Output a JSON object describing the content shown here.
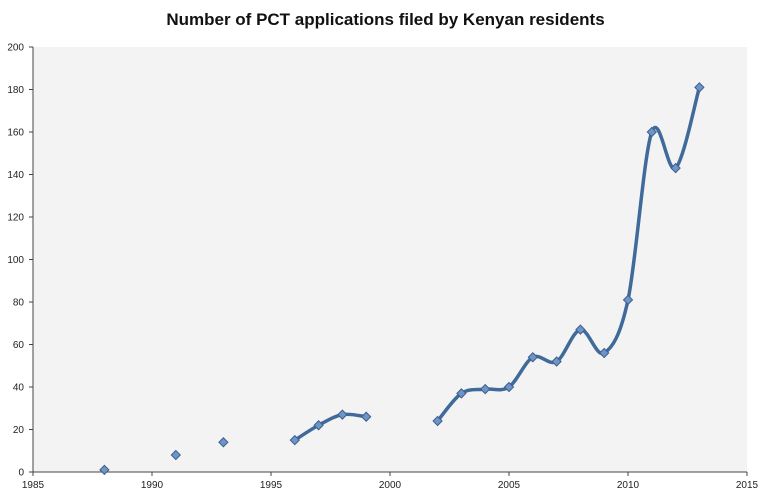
{
  "chart_data": {
    "type": "line",
    "title": "Number of PCT applications filed by Kenyan residents",
    "xlabel": "",
    "ylabel": "",
    "xlim": [
      1985,
      2015
    ],
    "ylim": [
      0,
      200
    ],
    "x_ticks": [
      1985,
      1990,
      1995,
      2000,
      2005,
      2010,
      2015
    ],
    "y_ticks": [
      0,
      20,
      40,
      60,
      80,
      100,
      120,
      140,
      160,
      180,
      200
    ],
    "grid": false,
    "smooth": true,
    "marker": "diamond",
    "series": [
      {
        "name": "PCT applications",
        "points": [
          [
            1988,
            1
          ],
          [
            1991,
            8
          ],
          [
            1993,
            14
          ],
          [
            1996,
            15
          ],
          [
            1997,
            22
          ],
          [
            1998,
            27
          ],
          [
            1999,
            26
          ],
          [
            2002,
            24
          ],
          [
            2003,
            37
          ],
          [
            2004,
            39
          ],
          [
            2005,
            40
          ],
          [
            2006,
            54
          ],
          [
            2007,
            52
          ],
          [
            2008,
            67
          ],
          [
            2009,
            56
          ],
          [
            2010,
            81
          ],
          [
            2011,
            160
          ],
          [
            2012,
            143
          ],
          [
            2013,
            181
          ]
        ],
        "segments": [
          [
            1996,
            1999
          ],
          [
            2002,
            2013
          ]
        ]
      }
    ],
    "colors": {
      "line": "#3f6a9a",
      "marker_fill": "#6f94c6",
      "marker_stroke": "#3d5f8f",
      "plot_bg": "#f3f3f3",
      "axis": "#444444"
    }
  }
}
